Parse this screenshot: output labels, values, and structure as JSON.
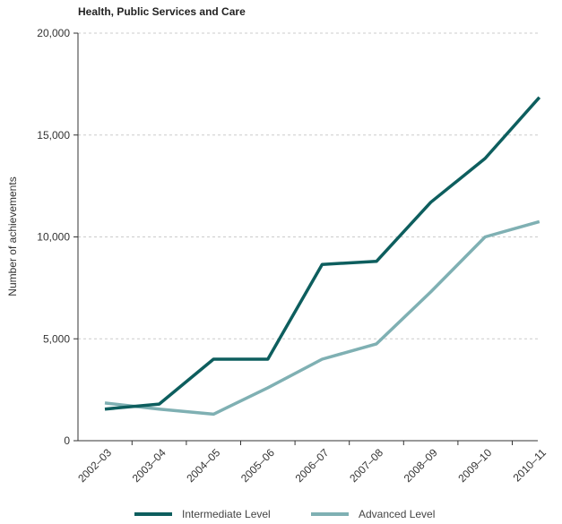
{
  "chart_data": {
    "type": "line",
    "title": "Health, Public Services and Care",
    "ylabel": "Number of achievements",
    "xlabel": "",
    "categories": [
      "2002–03",
      "2003–04",
      "2004–05",
      "2005–06",
      "2006–07",
      "2007–08",
      "2008–09",
      "2009–10",
      "2010–11"
    ],
    "ylim": [
      0,
      20000
    ],
    "yticks": [
      0,
      5000,
      10000,
      15000,
      20000
    ],
    "ytick_labels": [
      "0",
      "5,000",
      "10,000",
      "15,000",
      "20,000"
    ],
    "grid": "horizontal-dashed",
    "legend_position": "bottom",
    "series": [
      {
        "name": "Intermediate Level",
        "color": "#0d5e5e",
        "values": [
          1550,
          1800,
          4000,
          4000,
          8650,
          8800,
          11700,
          13850,
          16850
        ]
      },
      {
        "name": "Advanced Level",
        "color": "#7fb0b3",
        "values": [
          1850,
          1550,
          1300,
          2600,
          4000,
          4750,
          7300,
          10000,
          10750
        ]
      }
    ]
  }
}
